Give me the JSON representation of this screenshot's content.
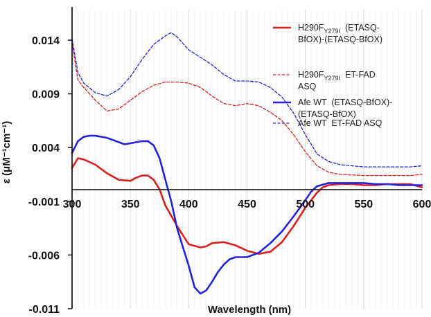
{
  "chart_data": {
    "type": "line",
    "xlabel": "Wavelength (nm)",
    "ylabel": "ε (μM⁻¹cm⁻¹)",
    "xlim": [
      300,
      600
    ],
    "ylim": [
      -0.011,
      0.016
    ],
    "x_ticks": [
      "300",
      "350",
      "400",
      "450",
      "500",
      "550",
      "600"
    ],
    "y_ticks": [
      "0.014",
      "0.009",
      "0.004",
      "-0.001",
      "-0.006",
      "-0.011"
    ],
    "y_tick_values": [
      0.014,
      0.009,
      0.004,
      -0.001,
      -0.006,
      -0.011
    ],
    "grid": "vertical minor lines every 5 nm",
    "legend_position": "right",
    "series": [
      {
        "name_main": "H290F",
        "name_sub": "Y279I",
        "name_rest1": "  (ETASQ-",
        "name_line2": "BfOX)-(ETASQ-BfOX)",
        "color": "#d62020",
        "style": "solid",
        "points": [
          [
            300,
            0.0021
          ],
          [
            305,
            0.003
          ],
          [
            310,
            0.0029
          ],
          [
            320,
            0.0024
          ],
          [
            330,
            0.0016
          ],
          [
            340,
            0.001
          ],
          [
            350,
            0.0009
          ],
          [
            355,
            0.0012
          ],
          [
            360,
            0.0014
          ],
          [
            365,
            0.0014
          ],
          [
            370,
            0.001
          ],
          [
            375,
            0.0001
          ],
          [
            380,
            -0.0014
          ],
          [
            390,
            -0.0033
          ],
          [
            400,
            -0.005
          ],
          [
            410,
            -0.0053
          ],
          [
            415,
            -0.0052
          ],
          [
            420,
            -0.0049
          ],
          [
            430,
            -0.0048
          ],
          [
            440,
            -0.0051
          ],
          [
            450,
            -0.0056
          ],
          [
            460,
            -0.0059
          ],
          [
            470,
            -0.0057
          ],
          [
            480,
            -0.0048
          ],
          [
            490,
            -0.0033
          ],
          [
            500,
            -0.0016
          ],
          [
            510,
            -0.0002
          ],
          [
            515,
            0.0003
          ],
          [
            520,
            0.0005
          ],
          [
            530,
            0.0006
          ],
          [
            540,
            0.0006
          ],
          [
            550,
            0.0005
          ],
          [
            560,
            0.0005
          ],
          [
            570,
            0.0006
          ],
          [
            580,
            0.0006
          ],
          [
            590,
            0.0006
          ],
          [
            600,
            0.0003
          ]
        ]
      },
      {
        "name_main": "H290F",
        "name_sub": "Y279I",
        "name_rest1": "  ET-FAD",
        "name_line2": "ASQ",
        "color": "#d62020",
        "style": "dashed",
        "points": [
          [
            300,
            0.0138
          ],
          [
            305,
            0.0103
          ],
          [
            310,
            0.0096
          ],
          [
            320,
            0.0084
          ],
          [
            330,
            0.0074
          ],
          [
            340,
            0.0076
          ],
          [
            350,
            0.0084
          ],
          [
            360,
            0.0092
          ],
          [
            370,
            0.0098
          ],
          [
            380,
            0.0101
          ],
          [
            390,
            0.0101
          ],
          [
            400,
            0.01
          ],
          [
            410,
            0.0096
          ],
          [
            420,
            0.0088
          ],
          [
            430,
            0.0081
          ],
          [
            440,
            0.0079
          ],
          [
            450,
            0.0081
          ],
          [
            460,
            0.0079
          ],
          [
            470,
            0.0073
          ],
          [
            480,
            0.0065
          ],
          [
            490,
            0.0052
          ],
          [
            500,
            0.0036
          ],
          [
            510,
            0.0023
          ],
          [
            520,
            0.0017
          ],
          [
            530,
            0.0015
          ],
          [
            550,
            0.0014
          ],
          [
            570,
            0.0014
          ],
          [
            590,
            0.0014
          ],
          [
            600,
            0.0015
          ]
        ]
      },
      {
        "name_main": "Afe WT",
        "name_sub": "",
        "name_rest1": "  (ETASQ-BfOX)-",
        "name_line2": "(ETASQ-BfOX)",
        "color": "#2222dd",
        "style": "solid",
        "points": [
          [
            300,
            0.0035
          ],
          [
            305,
            0.0046
          ],
          [
            310,
            0.005
          ],
          [
            315,
            0.0051
          ],
          [
            320,
            0.0051
          ],
          [
            330,
            0.0049
          ],
          [
            340,
            0.0045
          ],
          [
            345,
            0.0043
          ],
          [
            350,
            0.0044
          ],
          [
            360,
            0.0046
          ],
          [
            365,
            0.0046
          ],
          [
            370,
            0.0042
          ],
          [
            375,
            0.003
          ],
          [
            380,
            0.001
          ],
          [
            385,
            -0.001
          ],
          [
            390,
            -0.0035
          ],
          [
            400,
            -0.007
          ],
          [
            405,
            -0.009
          ],
          [
            410,
            -0.0096
          ],
          [
            415,
            -0.0093
          ],
          [
            420,
            -0.0085
          ],
          [
            425,
            -0.0076
          ],
          [
            430,
            -0.0069
          ],
          [
            435,
            -0.0064
          ],
          [
            440,
            -0.0062
          ],
          [
            450,
            -0.0062
          ],
          [
            460,
            -0.0058
          ],
          [
            470,
            -0.0049
          ],
          [
            480,
            -0.0038
          ],
          [
            490,
            -0.0024
          ],
          [
            500,
            -0.0009
          ],
          [
            505,
            -0.0001
          ],
          [
            510,
            0.0004
          ],
          [
            520,
            0.0007
          ],
          [
            530,
            0.0007
          ],
          [
            540,
            0.0007
          ],
          [
            550,
            0.0007
          ],
          [
            560,
            0.0006
          ],
          [
            570,
            0.0006
          ],
          [
            580,
            0.0005
          ],
          [
            590,
            0.0005
          ],
          [
            600,
            0.0005
          ]
        ]
      },
      {
        "name_main": "Afe WT",
        "name_sub": "",
        "name_rest1": "  ET-FAD ASQ",
        "name_line2": "",
        "color": "#2222dd",
        "style": "dashed",
        "points": [
          [
            300,
            0.0141
          ],
          [
            305,
            0.011
          ],
          [
            310,
            0.01
          ],
          [
            320,
            0.0091
          ],
          [
            330,
            0.0088
          ],
          [
            340,
            0.0094
          ],
          [
            350,
            0.0106
          ],
          [
            360,
            0.0122
          ],
          [
            370,
            0.0136
          ],
          [
            380,
            0.0144
          ],
          [
            385,
            0.0147
          ],
          [
            390,
            0.0143
          ],
          [
            400,
            0.0131
          ],
          [
            410,
            0.0124
          ],
          [
            420,
            0.0117
          ],
          [
            430,
            0.0108
          ],
          [
            440,
            0.0102
          ],
          [
            450,
            0.0102
          ],
          [
            460,
            0.0101
          ],
          [
            470,
            0.0096
          ],
          [
            480,
            0.0087
          ],
          [
            490,
            0.0072
          ],
          [
            500,
            0.0052
          ],
          [
            510,
            0.0034
          ],
          [
            520,
            0.0027
          ],
          [
            530,
            0.0024
          ],
          [
            550,
            0.0022
          ],
          [
            570,
            0.0022
          ],
          [
            590,
            0.0022
          ],
          [
            600,
            0.0023
          ]
        ]
      }
    ]
  }
}
